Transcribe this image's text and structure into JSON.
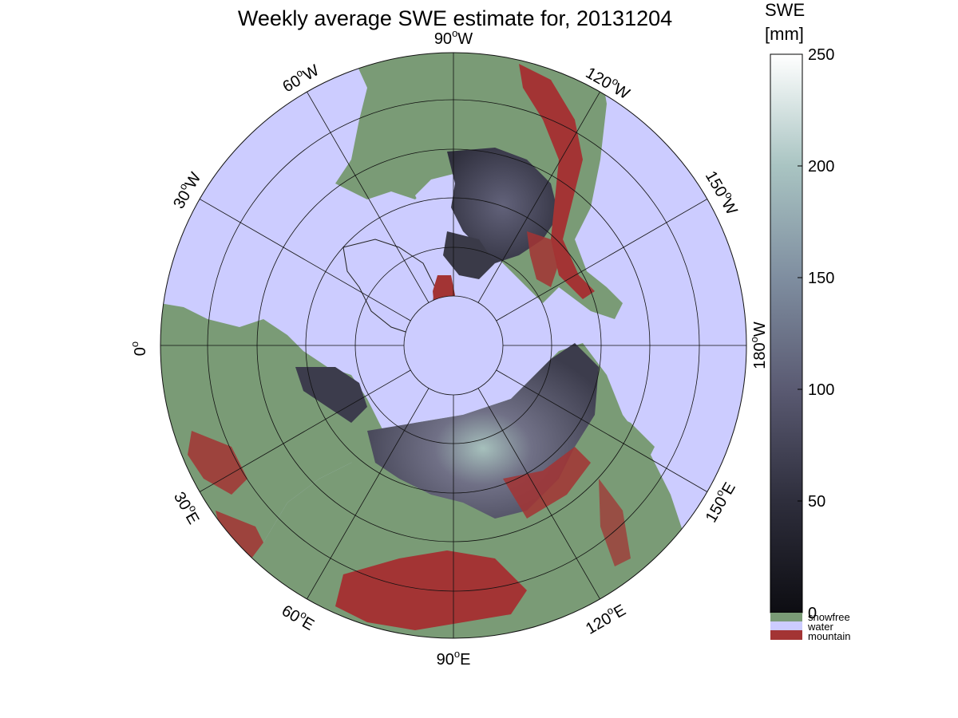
{
  "title": "Weekly average SWE estimate for, 20131204",
  "colorbar": {
    "label_line1": "SWE",
    "label_line2": "[mm]",
    "ticks": [
      "250",
      "200",
      "150",
      "100",
      "50",
      "0"
    ],
    "categories": [
      {
        "label": "snowfree",
        "color": "#7a9b76"
      },
      {
        "label": "water",
        "color": "#ccccff"
      },
      {
        "label": "mountain",
        "color": "#a33434"
      }
    ]
  },
  "longitude_labels": {
    "deg_90W": "90",
    "dir_90W": "W",
    "deg_120W": "120",
    "dir_120W": "W",
    "deg_150W": "150",
    "dir_150W": "W",
    "deg_180W": "180",
    "dir_180W": "W",
    "deg_150E": "150",
    "dir_150E": "E",
    "deg_120E": "120",
    "dir_120E": "E",
    "deg_90E": "90",
    "dir_90E": "E",
    "deg_60E": "60",
    "dir_60E": "E",
    "deg_30E": "30",
    "dir_30E": "E",
    "deg_0": "0",
    "deg_30W": "30",
    "dir_30W": "W",
    "deg_60W": "60",
    "dir_60W": "W",
    "degree_symbol": "o"
  },
  "colors": {
    "water": "#ccccff",
    "snowfree": "#7a9b76",
    "mountain": "#a33434",
    "swe_low": "#111116",
    "swe_mid": "#55556e",
    "swe_high": "#b8d4cc"
  }
}
